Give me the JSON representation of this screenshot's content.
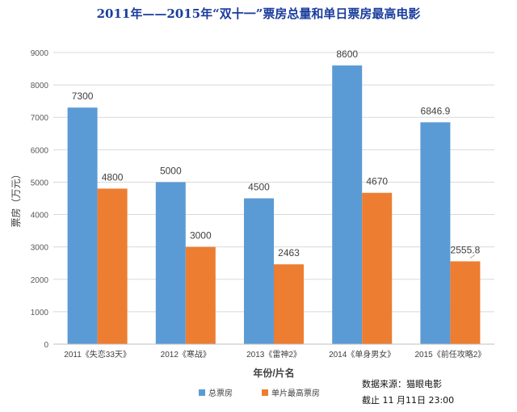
{
  "chart_data": {
    "type": "bar",
    "title": "2011年——2015年“双十一”票房总量和单日票房最高电影",
    "xlabel": "年份/片名",
    "ylabel": "票房（万元）",
    "ylim": [
      0,
      9000
    ],
    "yticks": [
      "0",
      "1000",
      "2000",
      "3000",
      "4000",
      "5000",
      "6000",
      "7000",
      "8000",
      "9000"
    ],
    "grid": true,
    "legend_position": "bottom-left",
    "categories": [
      "2011《失恋33天》",
      "2012《寒战》",
      "2013《雷神2》",
      "2014《单身男女》",
      "2015《前任攻略2》"
    ],
    "series": [
      {
        "name": "总票房",
        "color": "#5b9bd5",
        "values": [
          7300,
          5000,
          4500,
          8600,
          6846.9
        ],
        "labels": [
          "7300",
          "5000",
          "4500",
          "8600",
          "6846.9"
        ]
      },
      {
        "name": "单片最高票房",
        "color": "#ed7d31",
        "values": [
          4800,
          3000,
          2463,
          4670,
          2555.8
        ],
        "labels": [
          "4800",
          "3000",
          "2463",
          "4670",
          "2555.8"
        ]
      }
    ]
  },
  "source": {
    "line1": "数据来源：猫眼电影",
    "line2": "截止 11 月11日 23:00"
  }
}
